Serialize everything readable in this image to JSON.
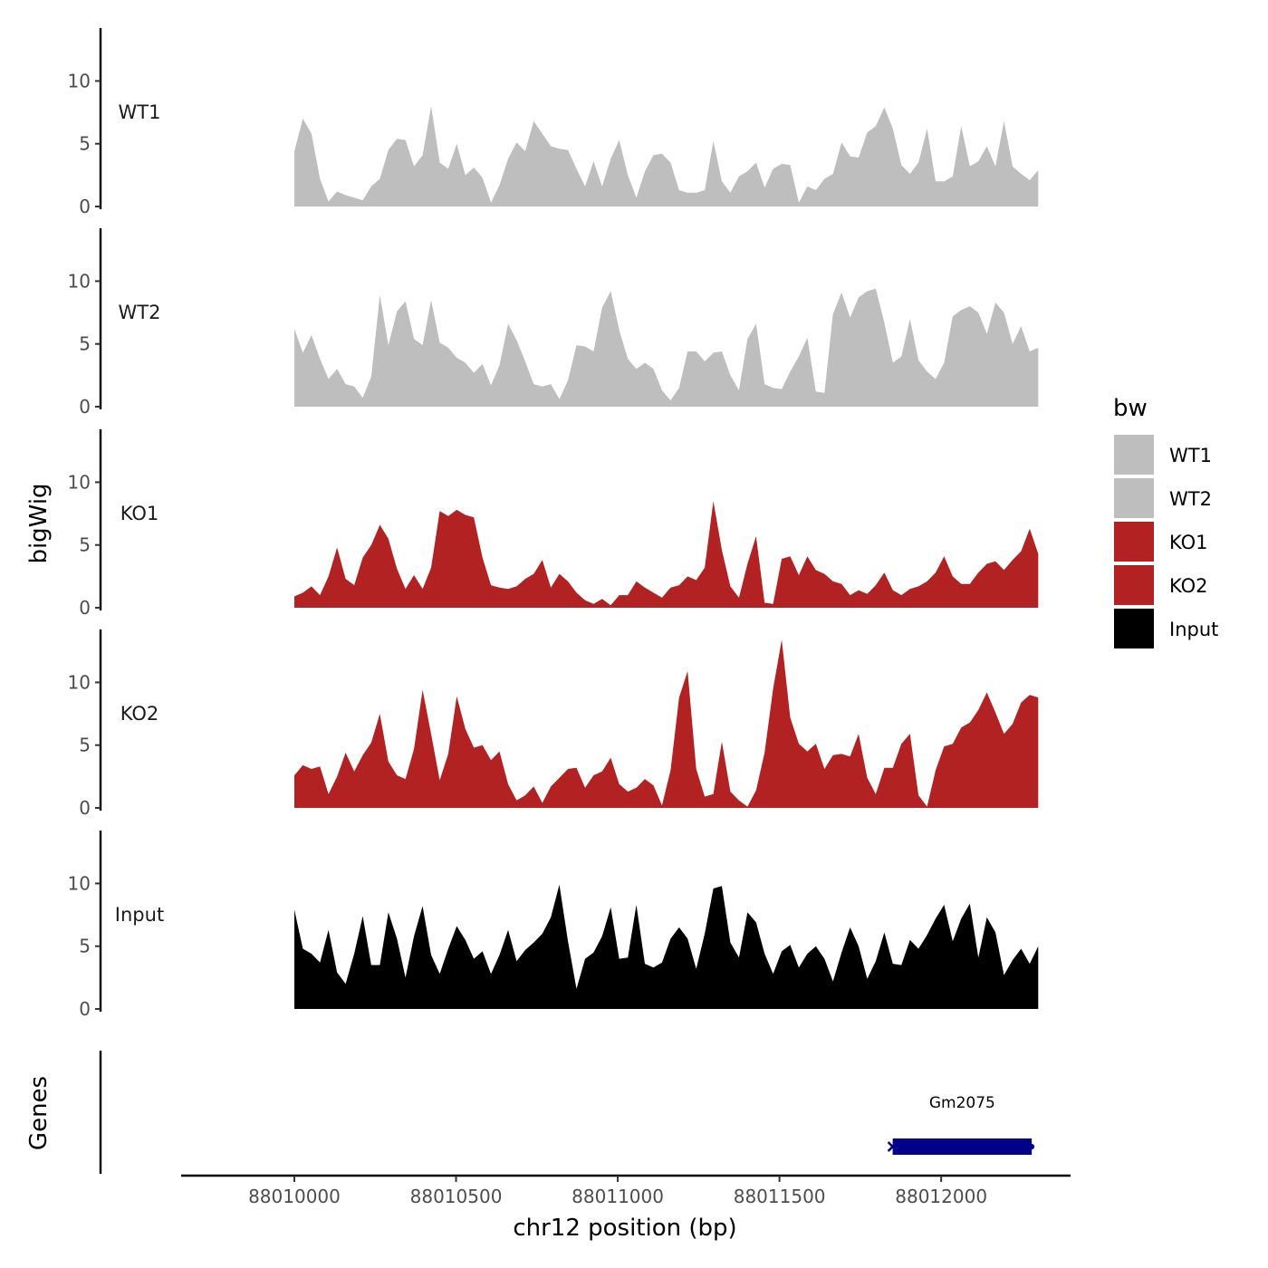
{
  "chart_data": {
    "type": "area",
    "chromosome": "chr12",
    "xlabel": "chr12 position (bp)",
    "ylabel": "bigWig",
    "genes_label": "Genes",
    "xlim": [
      88009650,
      88012400
    ],
    "data_range": [
      88010000,
      88012300
    ],
    "x_ticks": [
      88010000,
      88010500,
      88011000,
      88011500,
      88012000
    ],
    "x_tick_labels": [
      "88010000",
      "88010500",
      "88011000",
      "88011500",
      "88012000"
    ],
    "ylim": [
      0,
      14
    ],
    "y_ticks": [
      0,
      5,
      10
    ],
    "y_tick_labels": [
      "0",
      "5",
      "10"
    ],
    "legend": {
      "title": "bw",
      "entries": [
        {
          "label": "WT1",
          "color": "#bebebe"
        },
        {
          "label": "WT2",
          "color": "#bebebe"
        },
        {
          "label": "KO1",
          "color": "#b22222"
        },
        {
          "label": "KO2",
          "color": "#b22222"
        },
        {
          "label": "Input",
          "color": "#000000"
        }
      ]
    },
    "series": [
      {
        "name": "WT1",
        "color": "#bebebe",
        "values": [
          4.4,
          7.0,
          5.8,
          2.2,
          0.4,
          1.2,
          0.9,
          0.7,
          0.5,
          1.6,
          2.2,
          4.5,
          5.4,
          5.3,
          3.2,
          4.1,
          8.0,
          3.5,
          3.0,
          5.0,
          2.5,
          3.1,
          2.3,
          0.3,
          1.7,
          3.8,
          5.1,
          4.4,
          6.8,
          5.8,
          4.8,
          4.6,
          4.5,
          3.0,
          1.6,
          3.6,
          1.6,
          3.8,
          5.3,
          2.5,
          0.7,
          2.8,
          4.1,
          4.2,
          3.5,
          1.3,
          1.1,
          1.1,
          1.3,
          5.2,
          2.0,
          1.1,
          2.4,
          2.8,
          3.5,
          1.5,
          3.0,
          3.4,
          3.3,
          0.3,
          1.6,
          1.3,
          2.2,
          2.6,
          5.1,
          4.0,
          3.9,
          5.9,
          6.4,
          7.9,
          6.2,
          3.3,
          2.6,
          3.5,
          6.2,
          2.0,
          2.0,
          2.4,
          6.4,
          3.2,
          3.6,
          4.8,
          3.2,
          6.8,
          3.2,
          2.6,
          2.1,
          2.9
        ]
      },
      {
        "name": "WT2",
        "color": "#bebebe",
        "values": [
          6.2,
          4.3,
          5.7,
          3.8,
          2.2,
          3.0,
          1.8,
          1.6,
          0.7,
          2.4,
          8.9,
          4.9,
          7.6,
          8.4,
          5.4,
          4.9,
          8.5,
          5.1,
          4.7,
          3.9,
          3.5,
          2.7,
          3.4,
          1.7,
          3.3,
          6.6,
          5.3,
          3.6,
          1.8,
          1.6,
          1.8,
          0.6,
          2.1,
          4.9,
          4.8,
          4.4,
          7.9,
          9.2,
          6.1,
          3.8,
          3.0,
          3.5,
          3.0,
          1.3,
          0.5,
          1.5,
          4.4,
          4.4,
          3.6,
          4.3,
          4.4,
          2.5,
          1.3,
          5.4,
          6.6,
          1.8,
          1.5,
          1.4,
          2.8,
          4.0,
          5.5,
          1.2,
          1.1,
          7.4,
          9.1,
          7.1,
          8.7,
          9.2,
          9.4,
          6.7,
          3.5,
          4.0,
          7.0,
          3.7,
          2.8,
          2.2,
          3.5,
          7.2,
          7.7,
          8.0,
          7.5,
          5.8,
          8.3,
          7.5,
          5.0,
          6.4,
          4.4,
          4.7
        ]
      },
      {
        "name": "KO1",
        "color": "#b22222",
        "values": [
          0.9,
          1.2,
          1.7,
          1.0,
          2.5,
          4.8,
          2.3,
          1.8,
          4.0,
          5.0,
          6.6,
          5.5,
          3.1,
          1.5,
          2.6,
          1.5,
          3.2,
          7.7,
          7.3,
          7.8,
          7.4,
          7.2,
          4.0,
          1.8,
          1.6,
          1.5,
          1.7,
          2.3,
          2.7,
          3.8,
          1.6,
          2.7,
          2.1,
          1.2,
          0.6,
          0.3,
          0.7,
          0.2,
          1.0,
          1.0,
          2.1,
          1.6,
          1.2,
          0.8,
          1.6,
          1.8,
          2.5,
          2.2,
          3.2,
          8.5,
          4.6,
          1.7,
          0.8,
          3.5,
          5.7,
          0.4,
          0.3,
          3.9,
          4.1,
          2.6,
          4.1,
          3.0,
          2.7,
          2.1,
          1.9,
          1.0,
          1.4,
          1.1,
          1.8,
          2.8,
          1.4,
          1.0,
          1.5,
          1.7,
          2.1,
          2.8,
          4.1,
          2.5,
          1.9,
          1.9,
          2.8,
          3.5,
          3.7,
          3.0,
          3.8,
          4.5,
          6.3,
          4.3
        ]
      },
      {
        "name": "KO2",
        "color": "#b22222",
        "values": [
          2.6,
          3.4,
          3.1,
          3.3,
          1.1,
          2.5,
          4.4,
          2.9,
          4.2,
          5.2,
          7.5,
          3.7,
          2.6,
          2.3,
          4.7,
          9.4,
          5.9,
          2.2,
          4.3,
          8.9,
          6.3,
          4.8,
          5.0,
          3.8,
          4.5,
          1.9,
          0.6,
          1.0,
          1.7,
          0.4,
          1.7,
          2.4,
          3.1,
          3.2,
          1.6,
          2.6,
          2.9,
          4.0,
          1.9,
          1.3,
          1.6,
          2.3,
          1.8,
          0.2,
          3.0,
          8.8,
          10.9,
          3.1,
          0.9,
          1.1,
          5.3,
          1.3,
          0.6,
          0.1,
          1.4,
          4.4,
          9.5,
          13.4,
          7.2,
          5.1,
          4.5,
          5.1,
          3.1,
          4.2,
          4.3,
          4.1,
          5.9,
          2.4,
          1.1,
          3.2,
          3.2,
          5.1,
          5.9,
          1.0,
          0.1,
          3.0,
          4.9,
          5.1,
          6.4,
          6.8,
          7.8,
          9.2,
          7.6,
          5.9,
          6.7,
          8.4,
          9.0,
          8.8
        ]
      },
      {
        "name": "Input",
        "color": "#000000",
        "values": [
          7.9,
          4.8,
          4.4,
          3.7,
          6.3,
          2.9,
          2.0,
          4.4,
          7.4,
          3.5,
          3.5,
          7.7,
          5.6,
          2.5,
          5.8,
          8.2,
          4.3,
          2.8,
          4.8,
          6.6,
          5.5,
          4.0,
          4.6,
          2.8,
          4.3,
          6.3,
          3.8,
          4.7,
          5.3,
          6.0,
          7.3,
          9.9,
          5.4,
          1.6,
          4.0,
          4.5,
          5.8,
          8.1,
          4.0,
          4.1,
          8.3,
          3.6,
          3.3,
          3.7,
          5.6,
          6.5,
          5.6,
          3.2,
          6.0,
          9.6,
          9.8,
          5.3,
          4.1,
          7.7,
          6.9,
          4.4,
          2.8,
          4.6,
          5.1,
          3.3,
          4.4,
          5.0,
          4.0,
          2.2,
          4.5,
          6.5,
          5.0,
          2.4,
          3.8,
          6.1,
          3.6,
          3.5,
          5.5,
          4.8,
          5.9,
          7.2,
          8.3,
          5.4,
          7.2,
          8.4,
          4.1,
          7.3,
          6.1,
          2.7,
          3.9,
          4.8,
          3.6,
          5.0
        ]
      }
    ],
    "genes": [
      {
        "name": "Gm2075",
        "start": 88011850,
        "end": 88012280,
        "strand": "-",
        "color": "#00008b"
      }
    ]
  }
}
